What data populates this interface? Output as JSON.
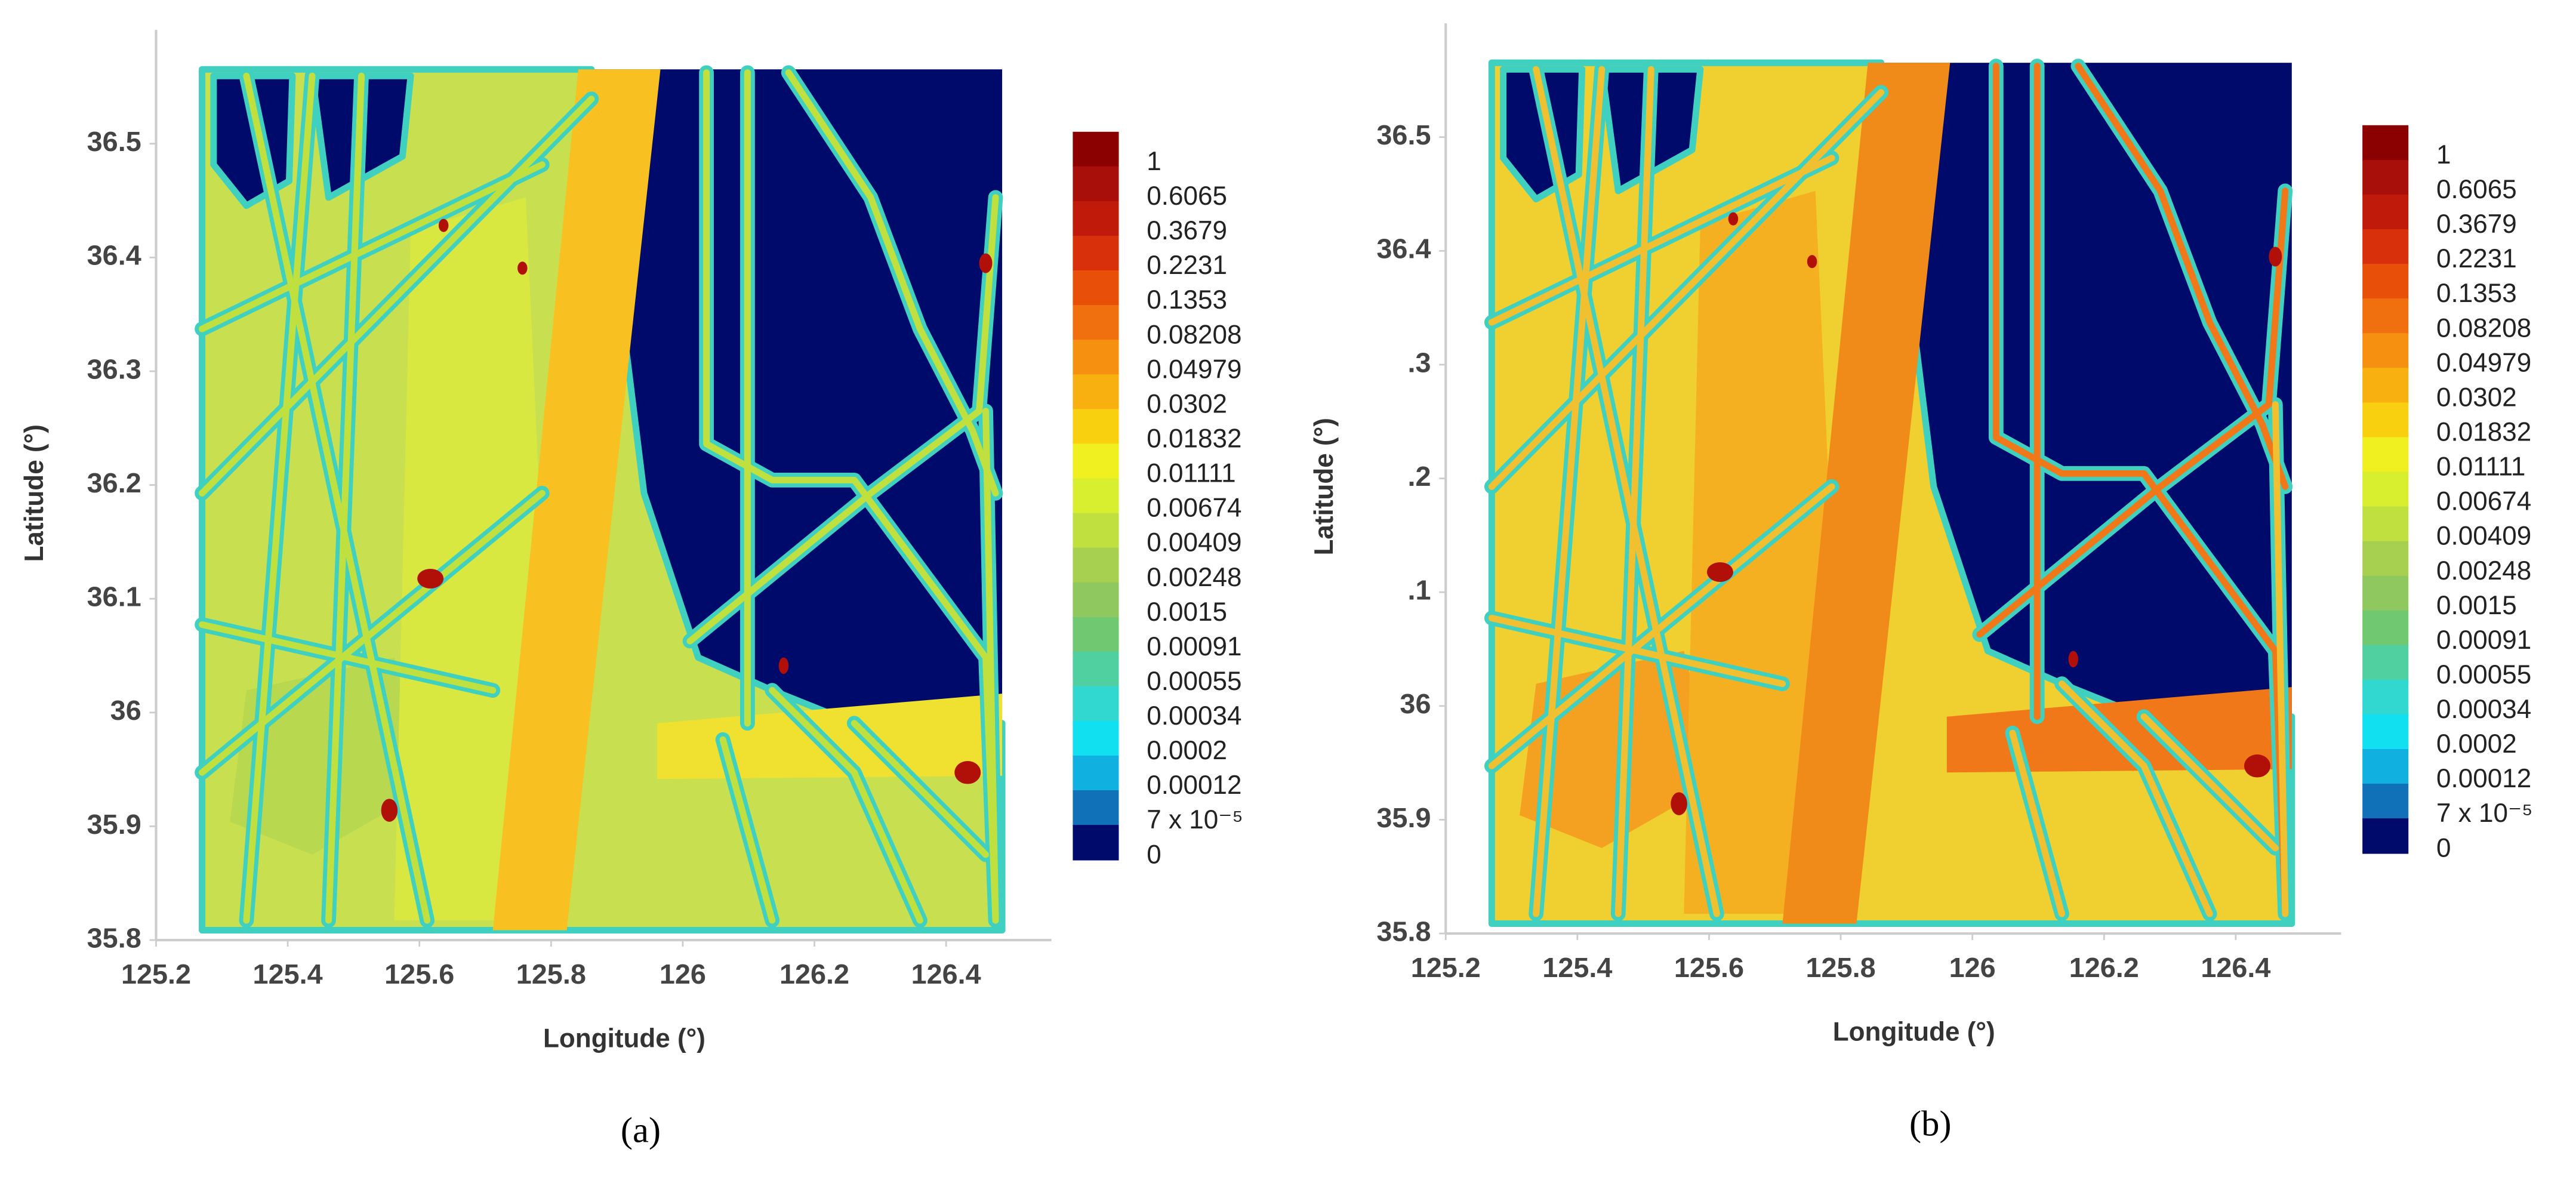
{
  "chart_data": [
    {
      "type": "contour",
      "panel_label": "(a)",
      "x_label": "Longitude (°)",
      "y_label": "Latitude (°)",
      "xlim": [
        125.2,
        126.56
      ],
      "ylim": [
        35.8,
        36.6
      ],
      "xticks": [
        125.2,
        125.4,
        125.6,
        125.8,
        126,
        126.2,
        126.4
      ],
      "yticks": [
        35.8,
        35.9,
        36,
        36.1,
        36.2,
        36.3,
        36.4,
        36.5
      ],
      "colorbar": {
        "ticks": [
          1,
          0.6065,
          0.3679,
          0.2231,
          0.1353,
          0.08208,
          0.04979,
          0.0302,
          0.01832,
          0.01111,
          0.00674,
          0.00409,
          0.00248,
          0.0015,
          0.00091,
          0.00055,
          0.00034,
          0.0002,
          0.00012,
          {
            "value": 7e-05,
            "label": "7 x 10⁻⁵"
          },
          0
        ],
        "colors": [
          "#8b0000",
          "#a80f0a",
          "#c01a0a",
          "#d8300a",
          "#e8500a",
          "#f07010",
          "#f59010",
          "#f8b010",
          "#f8d010",
          "#f0f020",
          "#d8ef30",
          "#c0e040",
          "#a8d050",
          "#90c860",
          "#70c870",
          "#50d0a0",
          "#30d8d0",
          "#10e0f0",
          "#10b0e0",
          "#1070b8",
          "#000a6b"
        ]
      }
    },
    {
      "type": "contour",
      "panel_label": "(b)",
      "x_label": "Longitude (°)",
      "y_label": "Latitude (°)",
      "xlim": [
        125.2,
        126.56
      ],
      "ylim": [
        35.8,
        36.6
      ],
      "xticks": [
        125.2,
        125.4,
        125.6,
        125.8,
        126,
        126.2,
        126.4
      ],
      "yticks": [
        35.8,
        35.9,
        36,
        {
          "value": 36.1,
          "label": ".1"
        },
        {
          "value": 36.2,
          "label": ".2"
        },
        {
          "value": 36.3,
          "label": ".3"
        },
        36.4,
        36.5
      ],
      "colorbar": {
        "ticks": [
          1,
          0.6065,
          0.3679,
          0.2231,
          0.1353,
          0.08208,
          0.04979,
          0.0302,
          0.01832,
          0.01111,
          0.00674,
          0.00409,
          0.00248,
          0.0015,
          0.00091,
          0.00055,
          0.00034,
          0.0002,
          0.00012,
          {
            "value": 7e-05,
            "label": "7 x 10⁻⁵"
          },
          0
        ],
        "colors": [
          "#8b0000",
          "#a80f0a",
          "#c01a0a",
          "#d8300a",
          "#e8500a",
          "#f07010",
          "#f59010",
          "#f8b010",
          "#f8d010",
          "#f0f020",
          "#d8ef30",
          "#c0e040",
          "#a8d050",
          "#90c860",
          "#70c870",
          "#50d0a0",
          "#30d8d0",
          "#10e0f0",
          "#10b0e0",
          "#1070b8",
          "#000a6b"
        ]
      }
    }
  ]
}
